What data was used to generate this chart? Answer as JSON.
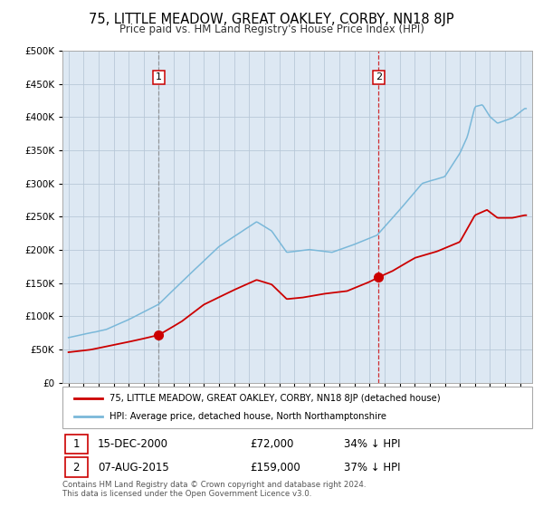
{
  "title": "75, LITTLE MEADOW, GREAT OAKLEY, CORBY, NN18 8JP",
  "subtitle": "Price paid vs. HM Land Registry's House Price Index (HPI)",
  "title_fontsize": 10.5,
  "subtitle_fontsize": 8.5,
  "hpi_color": "#7ab8d9",
  "price_color": "#cc0000",
  "background_color": "#dde8f3",
  "grid_color": "#b8c8d8",
  "ylim": [
    0,
    500000
  ],
  "yticks": [
    0,
    50000,
    100000,
    150000,
    200000,
    250000,
    300000,
    350000,
    400000,
    450000,
    500000
  ],
  "sale1_date_label": "15-DEC-2000",
  "sale1_price": 72000,
  "sale1_price_label": "£72,000",
  "sale1_hpi_label": "34% ↓ HPI",
  "sale1_year": 2001.0,
  "sale2_date_label": "07-AUG-2015",
  "sale2_price": 159000,
  "sale2_price_label": "£159,000",
  "sale2_hpi_label": "37% ↓ HPI",
  "sale2_year": 2015.6,
  "legend_label_red": "75, LITTLE MEADOW, GREAT OAKLEY, CORBY, NN18 8JP (detached house)",
  "legend_label_blue": "HPI: Average price, detached house, North Northamptonshire",
  "footer": "Contains HM Land Registry data © Crown copyright and database right 2024.\nThis data is licensed under the Open Government Licence v3.0.",
  "annotation1": "1",
  "annotation2": "2",
  "hpi_keypoints_x": [
    1995.0,
    1996.0,
    1997.5,
    1999.0,
    2001.0,
    2003.0,
    2005.0,
    2007.5,
    2008.5,
    2009.5,
    2011.0,
    2012.5,
    2014.0,
    2015.5,
    2017.0,
    2018.5,
    2020.0,
    2021.0,
    2021.5,
    2022.0,
    2022.5,
    2023.0,
    2023.5,
    2024.5,
    2025.3
  ],
  "hpi_keypoints_y": [
    68000,
    73000,
    80000,
    95000,
    118000,
    162000,
    205000,
    242000,
    228000,
    196000,
    200000,
    196000,
    208000,
    222000,
    260000,
    300000,
    310000,
    345000,
    370000,
    415000,
    418000,
    400000,
    390000,
    398000,
    412000
  ],
  "red_keypoints_x": [
    1995.0,
    1996.5,
    1998.0,
    1999.5,
    2001.0,
    2002.5,
    2004.0,
    2006.0,
    2007.5,
    2008.5,
    2009.5,
    2010.5,
    2012.0,
    2013.5,
    2015.0,
    2015.6,
    2016.5,
    2018.0,
    2019.5,
    2021.0,
    2022.0,
    2022.8,
    2023.5,
    2024.5,
    2025.3
  ],
  "red_keypoints_y": [
    46000,
    50000,
    57000,
    64000,
    72000,
    92000,
    118000,
    140000,
    155000,
    148000,
    126000,
    128000,
    134000,
    138000,
    152000,
    159000,
    168000,
    188000,
    198000,
    212000,
    252000,
    260000,
    248000,
    248000,
    252000
  ]
}
